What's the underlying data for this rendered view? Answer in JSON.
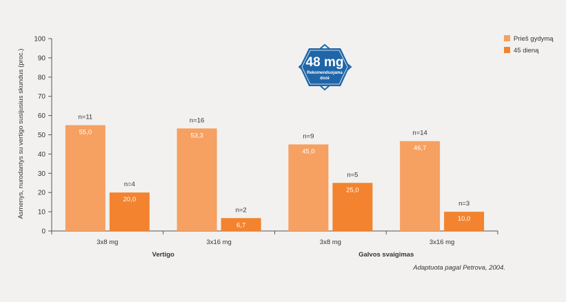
{
  "chart_data": {
    "type": "bar",
    "ylabel": "Asmenys, nurodantys su vertigo susijusius skundus (proc.)",
    "ylim": [
      0,
      100
    ],
    "yticks": [
      0,
      10,
      20,
      30,
      40,
      50,
      60,
      70,
      80,
      90,
      100
    ],
    "categories": [
      "3x8 mg",
      "3x16 mg",
      "3x8 mg",
      "3x16 mg"
    ],
    "groups": [
      {
        "label": "Vertigo",
        "categories": [
          0,
          1
        ]
      },
      {
        "label": "Galvos svaigimas",
        "categories": [
          2,
          3
        ]
      }
    ],
    "series": [
      {
        "name": "Prieš gydymą",
        "color": "#f6a062",
        "values": [
          55.0,
          53.3,
          45.0,
          46.7
        ],
        "value_labels": [
          "55,0",
          "53,3",
          "45,0",
          "46,7"
        ],
        "n_labels": [
          "n=11",
          "n=16",
          "n=9",
          "n=14"
        ]
      },
      {
        "name": "45 dieną",
        "color": "#f3832e",
        "values": [
          20.0,
          6.7,
          25.0,
          10.0
        ],
        "value_labels": [
          "20,0",
          "6,7",
          "25,0",
          "10,0"
        ],
        "n_labels": [
          "n=4",
          "n=2",
          "n=5",
          "n=3"
        ]
      }
    ],
    "legend_position": "top-right",
    "grid": false
  },
  "badge": {
    "dose": "48 mg",
    "line1": "Rekomenduojama",
    "line2": "dozė",
    "color": "#1f66a8"
  },
  "source_note": "Adaptuota pagal Petrova, 2004.",
  "colors": {
    "background": "#f2f1ef",
    "axis": "#555555"
  }
}
